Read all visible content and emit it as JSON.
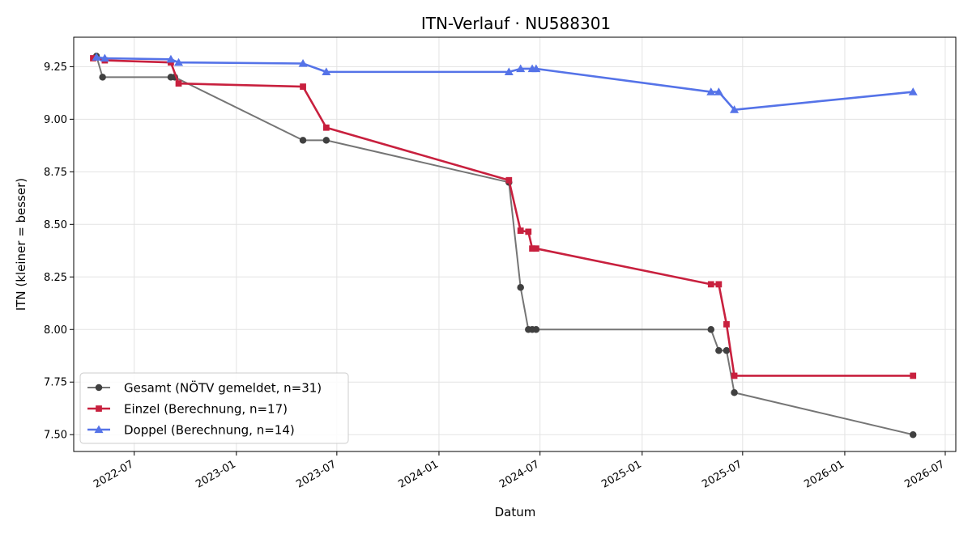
{
  "chart_data": {
    "type": "line",
    "title": "ITN-Verlauf · NU588301",
    "xlabel": "Datum",
    "ylabel": "ITN  (kleiner = besser)",
    "x_ticks": [
      "2022-07",
      "2023-01",
      "2023-07",
      "2024-01",
      "2024-07",
      "2025-01",
      "2025-07",
      "2026-01",
      "2026-07"
    ],
    "y_ticks": [
      "7.50",
      "7.75",
      "8.00",
      "8.25",
      "8.50",
      "8.75",
      "9.00",
      "9.25"
    ],
    "xlim": [
      "2022-03-14",
      "2026-07-20"
    ],
    "ylim": [
      7.42,
      9.39
    ],
    "grid": true,
    "legend_position": "lower-left",
    "series": [
      {
        "name": "Gesamt (NÖTV gemeldet, n=31)",
        "color": "#757575",
        "marker_color": "#404040",
        "marker": "circle",
        "points": [
          [
            "2022-04-24",
            9.3
          ],
          [
            "2022-05-05",
            9.2
          ],
          [
            "2022-09-05",
            9.2
          ],
          [
            "2022-09-12",
            9.2
          ],
          [
            "2023-05-01",
            8.9
          ],
          [
            "2023-06-12",
            8.9
          ],
          [
            "2024-05-06",
            8.7
          ],
          [
            "2024-05-27",
            8.2
          ],
          [
            "2024-06-10",
            8.0
          ],
          [
            "2024-06-17",
            8.0
          ],
          [
            "2024-06-24",
            8.0
          ],
          [
            "2025-05-05",
            8.0
          ],
          [
            "2025-05-19",
            7.9
          ],
          [
            "2025-06-02",
            7.9
          ],
          [
            "2025-06-16",
            7.7
          ],
          [
            "2026-05-04",
            7.5
          ]
        ]
      },
      {
        "name": "Einzel (Berechnung, n=17)",
        "color": "#c8203e",
        "marker_color": "#c8203e",
        "marker": "square",
        "points": [
          [
            "2022-04-18",
            9.29
          ],
          [
            "2022-05-09",
            9.28
          ],
          [
            "2022-09-05",
            9.27
          ],
          [
            "2022-09-19",
            9.17
          ],
          [
            "2023-05-01",
            9.155
          ],
          [
            "2023-06-12",
            8.96
          ],
          [
            "2024-05-06",
            8.71
          ],
          [
            "2024-05-27",
            8.47
          ],
          [
            "2024-06-10",
            8.465
          ],
          [
            "2024-06-17",
            8.385
          ],
          [
            "2024-06-24",
            8.385
          ],
          [
            "2025-05-05",
            8.215
          ],
          [
            "2025-05-19",
            8.215
          ],
          [
            "2025-06-02",
            8.025
          ],
          [
            "2025-06-16",
            7.78
          ],
          [
            "2026-05-04",
            7.78
          ]
        ]
      },
      {
        "name": "Doppel (Berechnung, n=14)",
        "color": "#5573e8",
        "marker_color": "#5573e8",
        "marker": "triangle",
        "points": [
          [
            "2022-04-24",
            9.295
          ],
          [
            "2022-05-09",
            9.29
          ],
          [
            "2022-09-05",
            9.285
          ],
          [
            "2022-09-19",
            9.27
          ],
          [
            "2023-05-01",
            9.265
          ],
          [
            "2023-06-12",
            9.225
          ],
          [
            "2024-05-06",
            9.225
          ],
          [
            "2024-05-27",
            9.24
          ],
          [
            "2024-06-17",
            9.24
          ],
          [
            "2024-06-24",
            9.24
          ],
          [
            "2025-05-05",
            9.13
          ],
          [
            "2025-05-19",
            9.13
          ],
          [
            "2025-06-16",
            9.045
          ],
          [
            "2026-05-04",
            9.13
          ]
        ]
      }
    ]
  }
}
